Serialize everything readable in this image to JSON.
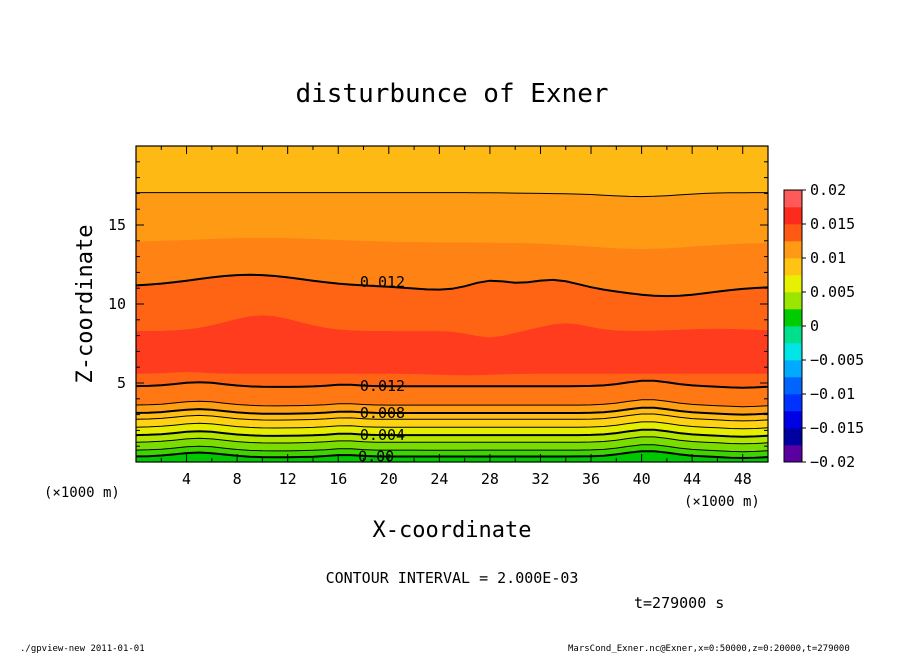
{
  "chart_data": {
    "type": "contour",
    "title": "disturbunce of Exner",
    "xlabel": "X-coordinate",
    "ylabel": "Z-coordinate",
    "x_unit": "(×1000 m)",
    "y_unit": "(×1000 m)",
    "xlim": [
      0,
      50
    ],
    "ylim": [
      0,
      20
    ],
    "x_ticks": [
      "4",
      "8",
      "12",
      "16",
      "20",
      "24",
      "28",
      "32",
      "36",
      "40",
      "44",
      "48"
    ],
    "y_ticks": [
      "5",
      "10",
      "15"
    ],
    "colorbar_ticks": [
      "0.02",
      "0.015",
      "0.01",
      "0.005",
      "0",
      "-0.005",
      "-0.01",
      "-0.015",
      "-0.02"
    ],
    "colorbar_range": [
      -0.02,
      0.02
    ],
    "contour_labels": [
      {
        "text": "0.012",
        "x": 19.5,
        "z": 11.4
      },
      {
        "text": "0.012",
        "x": 19.5,
        "z": 4.8
      },
      {
        "text": "0.008",
        "x": 19.5,
        "z": 3.1
      },
      {
        "text": "0.004",
        "x": 19.5,
        "z": 1.7
      },
      {
        "text": "0.00",
        "x": 19.0,
        "z": 0.35
      }
    ],
    "contour_interval_text": "CONTOUR INTERVAL = 2.000E-03",
    "time_text": "t=279000 s",
    "colors": {
      "0.02": "#ff8c8c",
      "0.0175": "#ff5a5a",
      "0.015": "#ff2a1e",
      "0.0125": "#ff5a14",
      "0.01": "#ff9a14",
      "0.0075": "#ffc314",
      "0.005": "#e6f000",
      "0.0025": "#9ae600",
      "0": "#00cc00",
      "-0.0025": "#00e08c",
      "-0.005": "#00e6e6",
      "-0.0075": "#00aaff",
      "-0.01": "#0064ff",
      "-0.0125": "#0032ff",
      "-0.015": "#0000e6",
      "-0.0175": "#0000a0",
      "-0.02": "#5a00a0"
    }
  },
  "footer": {
    "left": "./gpview-new   2011-01-01",
    "right": "MarsCond_Exner.nc@Exner,x=0:50000,z=0:20000,t=279000"
  }
}
